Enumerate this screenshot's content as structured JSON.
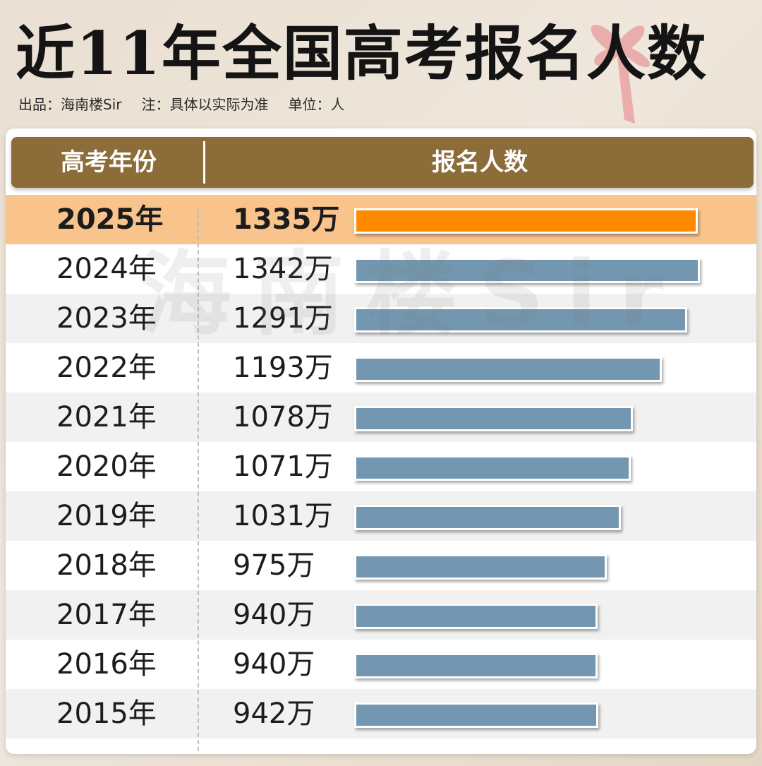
{
  "title": "近11年全国高考报名人数",
  "subtitle": {
    "producer": "出品：海南楼Sir",
    "note": "注：具体以实际为准",
    "unit": "单位：人"
  },
  "watermark": "海南楼Sir",
  "table": {
    "col_year": "高考年份",
    "col_count": "报名人数"
  },
  "colors": {
    "header": "#8c6d3a",
    "bar": "#7397b0",
    "highlight_bar": "#ff8a00",
    "highlight_row": "#f9c48c"
  },
  "chart_data": {
    "type": "bar",
    "orientation": "horizontal",
    "title": "近11年全国高考报名人数",
    "categories": [
      "2025年",
      "2024年",
      "2023年",
      "2022年",
      "2021年",
      "2020年",
      "2019年",
      "2018年",
      "2017年",
      "2016年",
      "2015年"
    ],
    "values": [
      1335,
      1342,
      1291,
      1193,
      1078,
      1071,
      1031,
      975,
      940,
      940,
      942
    ],
    "value_labels": [
      "1335万",
      "1342万",
      "1291万",
      "1193万",
      "1078万",
      "1071万",
      "1031万",
      "975万",
      "940万",
      "940万",
      "942万"
    ],
    "unit": "万",
    "highlight_index": 0,
    "xlim": [
      0,
      1342
    ],
    "grid": false,
    "legend": "none"
  }
}
